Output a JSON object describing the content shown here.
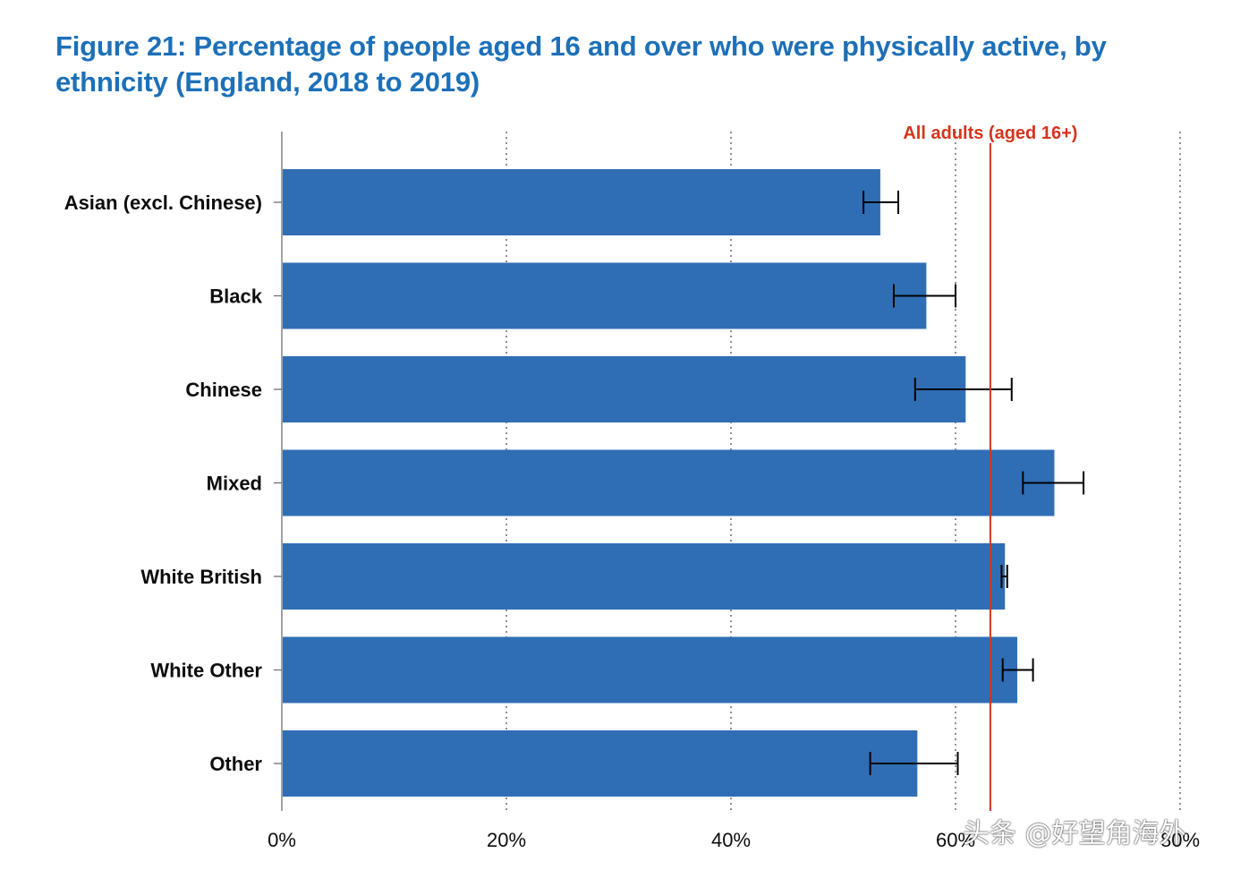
{
  "chart_data": {
    "type": "bar",
    "orientation": "horizontal",
    "title": "Figure 21: Percentage of people aged 16 and over who were physically active, by ethnicity (England, 2018 to 2019)",
    "categories": [
      "Asian (excl. Chinese)",
      "Black",
      "Chinese",
      "Mixed",
      "White British",
      "White Other",
      "Other"
    ],
    "values": [
      53.3,
      57.4,
      60.9,
      68.8,
      64.4,
      65.5,
      56.6
    ],
    "error_low": [
      51.8,
      54.5,
      56.4,
      66.0,
      64.1,
      64.2,
      52.4
    ],
    "error_high": [
      54.9,
      60.0,
      65.0,
      71.4,
      64.6,
      66.9,
      60.2
    ],
    "xlim": [
      0,
      80
    ],
    "xticks": [
      0,
      20,
      40,
      60,
      80
    ],
    "xtick_labels": [
      "0%",
      "20%",
      "40%",
      "60%",
      "80%"
    ],
    "reference_line": {
      "label": "All adults (aged 16+)",
      "value": 63.1
    },
    "grid": "vertical dotted",
    "bar_color": "#2f6eb5",
    "reference_color": "#d4351c",
    "title_color": "#1d70b8"
  },
  "watermark": "头条 @好望角海外"
}
